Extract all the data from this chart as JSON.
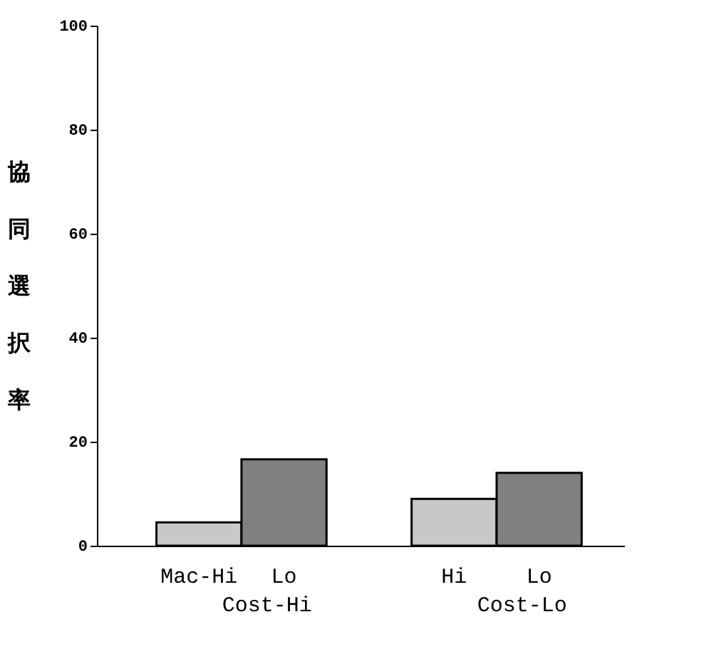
{
  "chart_data": {
    "type": "bar",
    "ylabel": "協同選択率",
    "categories": [
      "Mac-Hi",
      "Lo",
      "Hi",
      "Lo"
    ],
    "values": [
      4.5,
      16.6,
      9.0,
      14.0
    ],
    "colors": [
      "#c8c8c8",
      "#808080",
      "#c8c8c8",
      "#808080"
    ],
    "annotations": [
      "Cost-Hi",
      "Cost-Lo"
    ],
    "ylim": [
      0,
      100
    ],
    "yticks": [
      0,
      20,
      40,
      60,
      80,
      100
    ],
    "grid": false
  }
}
